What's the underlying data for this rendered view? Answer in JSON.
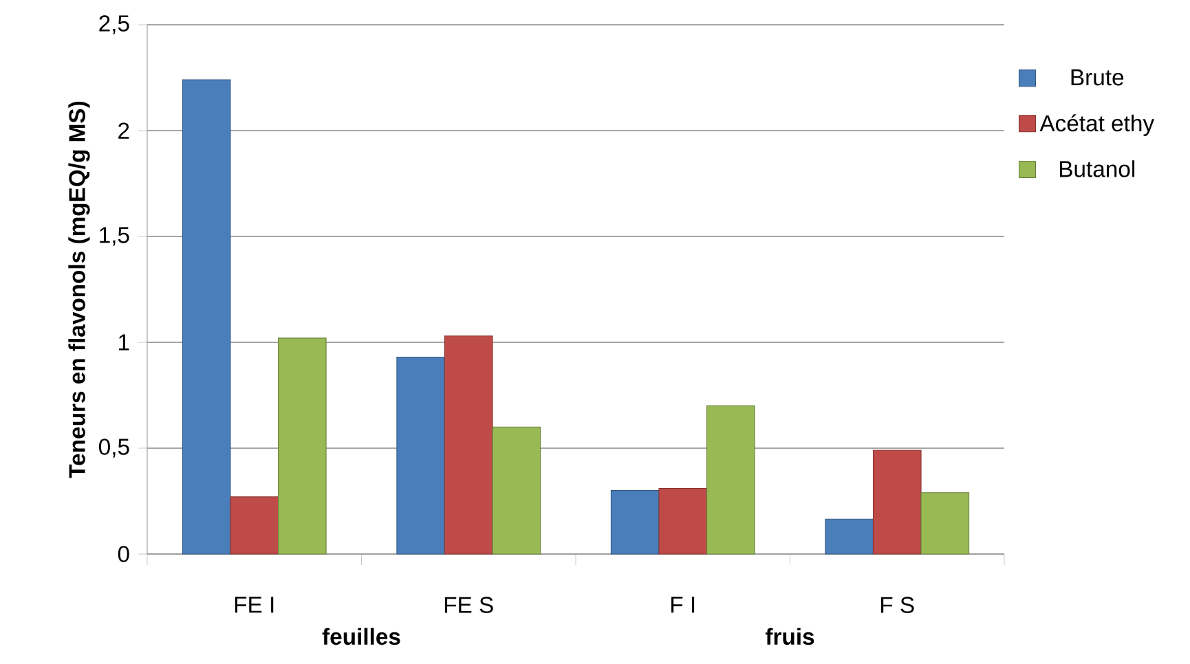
{
  "chart_data": {
    "type": "bar",
    "ylabel": "Teneurs  en flavonols (mgEQ/g MS)",
    "categories": [
      "FE I",
      "FE S",
      "F I",
      "F S"
    ],
    "series": [
      {
        "name": "Brute",
        "color": "#4a7ebb",
        "values": [
          2.24,
          0.93,
          0.3,
          0.165
        ]
      },
      {
        "name": "Acétat ethy",
        "color": "#be4b48",
        "values": [
          0.27,
          1.03,
          0.31,
          0.49
        ]
      },
      {
        "name": "Butanol",
        "color": "#98b954",
        "values": [
          1.02,
          0.6,
          0.7,
          0.29
        ]
      }
    ],
    "ylim": [
      0,
      2.5
    ],
    "yticks": [
      0,
      {
        "value": 0.5,
        "label": "0,5"
      },
      1,
      {
        "value": 1.5,
        "label": "1,5"
      },
      2,
      {
        "value": 2.5,
        "label": "2,5"
      }
    ],
    "grid": "y",
    "legend": "right",
    "annotations": [
      "feuilles",
      "fruis"
    ]
  }
}
